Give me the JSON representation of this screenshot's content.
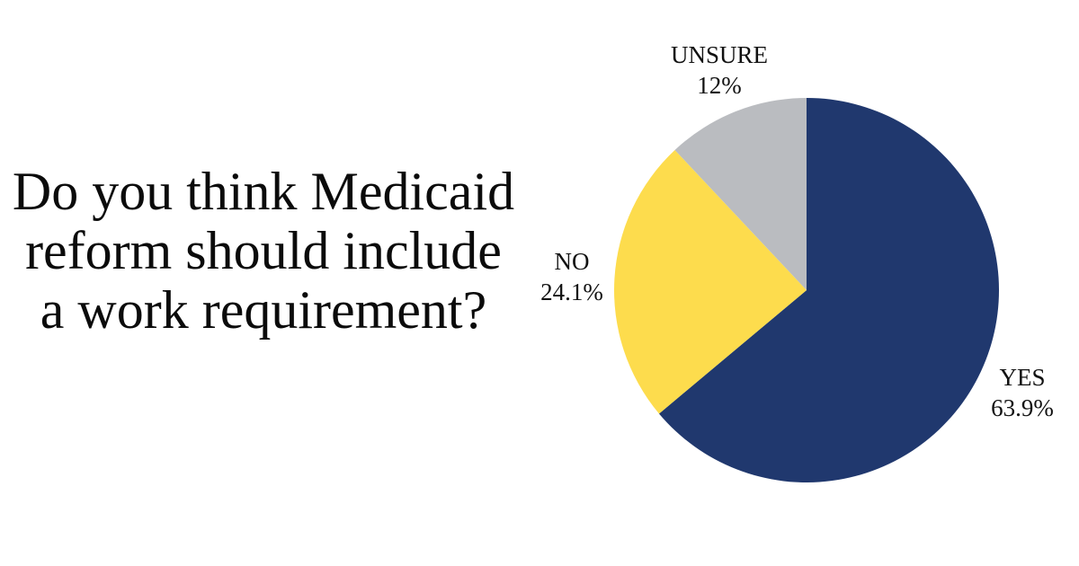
{
  "question": {
    "text": "Do you think Medicaid reform should include a work requirement?",
    "lines": [
      "Do you think Medicaid",
      "reform should include",
      "a work requirement?"
    ]
  },
  "chart_data": {
    "type": "pie",
    "title": "Do you think Medicaid reform should include a work requirement?",
    "slices": [
      {
        "label": "YES",
        "value": 63.9,
        "display_value": "63.9%",
        "color": "#20386E"
      },
      {
        "label": "NO",
        "value": 24.1,
        "display_value": "24.1%",
        "color": "#FDDC4D"
      },
      {
        "label": "UNSURE",
        "value": 12,
        "display_value": "12%",
        "color": "#BABCC0"
      }
    ],
    "start_angle_deg": 0,
    "direction": "clockwise",
    "label_position": "outside",
    "background": "#FFFFFF",
    "text_color": "#111111"
  }
}
